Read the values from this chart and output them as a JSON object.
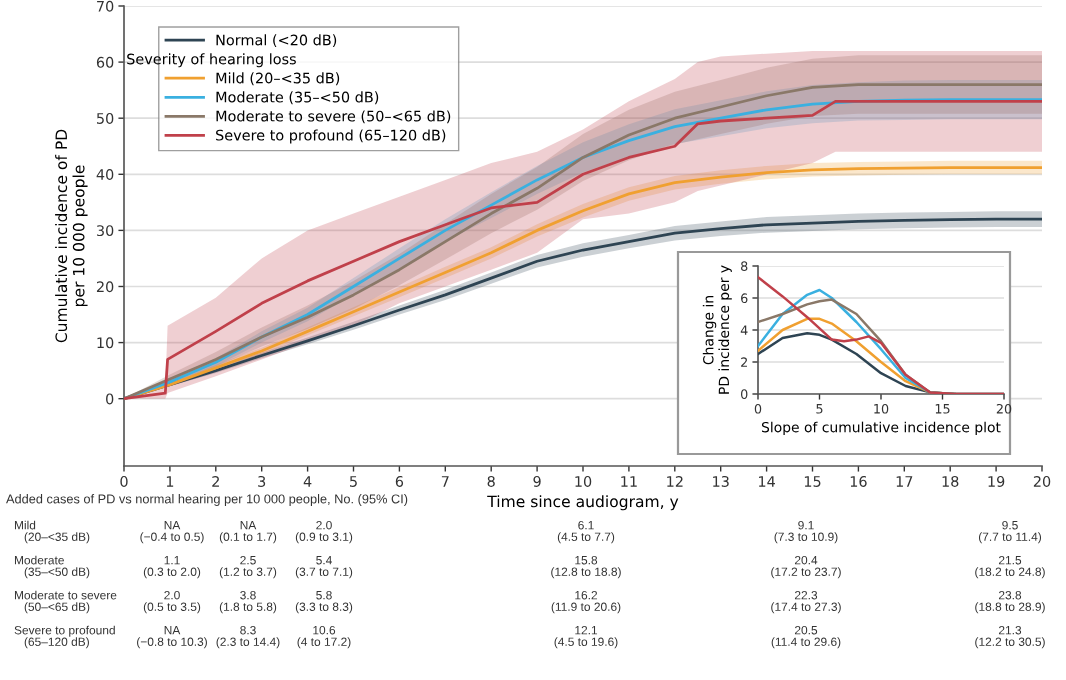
{
  "chart_data": [
    {
      "type": "line",
      "xlabel": "Time since audiogram, y",
      "ylabel": "Cumulative incidence of PD\nper 10 000 people",
      "xlim": [
        0,
        20
      ],
      "xticks": [
        0,
        1,
        2,
        3,
        4,
        5,
        6,
        7,
        8,
        9,
        10,
        11,
        12,
        13,
        14,
        15,
        16,
        17,
        18,
        19,
        20
      ],
      "ylim": [
        -12,
        70
      ],
      "yticks": [
        0,
        10,
        20,
        30,
        40,
        50,
        60,
        70
      ],
      "grid": "y",
      "legend": "top left",
      "legend_title": "Severity of hearing loss",
      "x": [
        0,
        1,
        2,
        3,
        4,
        5,
        6,
        7,
        8,
        9,
        10,
        11,
        12,
        13,
        14,
        15,
        16,
        17,
        18,
        19,
        20
      ],
      "series": [
        {
          "name": "Normal (<20 dB)",
          "color": "#2e4453",
          "values": [
            0,
            2.5,
            5,
            7.7,
            10.3,
            13,
            15.8,
            18.5,
            21.5,
            24.5,
            26.5,
            28,
            29.5,
            30.3,
            31,
            31.3,
            31.6,
            31.8,
            31.9,
            32,
            32
          ],
          "lower": [
            0,
            2.2,
            4.6,
            7.2,
            9.7,
            12.3,
            15,
            17.6,
            20.5,
            23.4,
            25.3,
            26.8,
            28.2,
            29,
            29.6,
            29.9,
            30.2,
            30.4,
            30.5,
            30.6,
            30.6
          ],
          "upper": [
            0,
            2.8,
            5.4,
            8.2,
            10.9,
            13.7,
            16.6,
            19.4,
            22.5,
            25.6,
            27.7,
            29.2,
            30.8,
            31.6,
            32.4,
            32.7,
            33,
            33.2,
            33.3,
            33.4,
            33.4
          ]
        },
        {
          "name": "Mild (20–<35 dB)",
          "color": "#f0a030",
          "values": [
            0,
            2.5,
            5.5,
            8.5,
            12,
            15.5,
            19,
            22.5,
            26,
            30,
            33.5,
            36.5,
            38.5,
            39.5,
            40.3,
            40.8,
            41,
            41.1,
            41.2,
            41.2,
            41.2
          ],
          "lower": [
            0,
            2.2,
            5,
            7.9,
            11.3,
            14.7,
            18.1,
            21.5,
            25,
            28.9,
            32.3,
            35.3,
            37.3,
            38.3,
            39.1,
            39.6,
            39.8,
            39.9,
            40,
            40,
            40
          ],
          "upper": [
            0,
            2.8,
            6,
            9.1,
            12.7,
            16.3,
            19.9,
            23.5,
            27,
            31.1,
            34.7,
            37.7,
            39.7,
            40.7,
            41.5,
            42,
            42.2,
            42.3,
            42.4,
            42.4,
            42.4
          ]
        },
        {
          "name": "Moderate (35–<50 dB)",
          "color": "#3ab0e0",
          "values": [
            0,
            3,
            6.5,
            11,
            15,
            20,
            25,
            30,
            34.5,
            39,
            43,
            46,
            48.5,
            50,
            51.5,
            52.5,
            53,
            53.2,
            53.3,
            53.3,
            53.3
          ],
          "lower": [
            0,
            2.6,
            5.8,
            10,
            13.8,
            18.5,
            23.2,
            28,
            32.2,
            36.5,
            40.3,
            43.1,
            45.4,
            46.8,
            48.2,
            49.1,
            49.6,
            49.7,
            49.8,
            49.8,
            49.8
          ],
          "upper": [
            0,
            3.4,
            7.2,
            12,
            16.2,
            21.5,
            26.8,
            32,
            36.8,
            41.5,
            45.7,
            48.9,
            51.6,
            53.2,
            54.8,
            55.9,
            56.4,
            56.7,
            56.8,
            56.8,
            56.8
          ]
        },
        {
          "name": "Moderate to severe (50–<65 dB)",
          "color": "#8a7868",
          "values": [
            0,
            3.5,
            7,
            11,
            14.5,
            18.5,
            23,
            28,
            33,
            37.5,
            43,
            47,
            50,
            52,
            54,
            55.5,
            56,
            56,
            56,
            56,
            56
          ],
          "lower": [
            0,
            2.7,
            5.7,
            9.3,
            12.4,
            16,
            20.2,
            24.8,
            29.5,
            33.7,
            38.8,
            42.5,
            45.3,
            47.2,
            49,
            50.4,
            50.8,
            50.8,
            50.8,
            50.8,
            50.8
          ],
          "upper": [
            0,
            4.3,
            8.3,
            12.7,
            16.6,
            21,
            25.8,
            31.2,
            36.5,
            41.3,
            47.2,
            51.5,
            54.7,
            56.8,
            59,
            60.6,
            61.2,
            61.2,
            61.2,
            61.2,
            61.2
          ]
        },
        {
          "name": "Severe to profound (65–120 dB)",
          "color": "#c0404a",
          "x": [
            0,
            0.9,
            0.95,
            2,
            3,
            4,
            5,
            6,
            7,
            8,
            9,
            10,
            11,
            12,
            12.5,
            13,
            14,
            15,
            15.5,
            16,
            20
          ],
          "values": [
            0,
            1,
            7,
            12,
            17,
            21,
            24.5,
            28,
            31,
            34,
            35,
            40,
            43,
            45,
            49,
            49.5,
            50,
            50.5,
            53,
            53,
            53
          ],
          "lower": [
            0,
            0,
            1,
            4,
            7,
            10,
            13,
            17,
            20,
            23,
            26,
            32,
            33,
            35,
            37,
            38,
            40,
            42,
            44,
            44,
            44
          ],
          "upper": [
            0,
            2,
            13,
            18,
            25,
            30,
            33,
            36,
            39,
            42,
            44,
            48,
            53,
            57,
            60,
            61,
            61.5,
            62,
            62,
            62,
            62
          ]
        }
      ],
      "annotations": [
        "Added cases of PD vs normal hearing per 10 000 people, No. (95% CI)",
        "Mild\n   (20–<35 dB)",
        "NA\n(−0.4 to 0.5)",
        "NA\n(0.1 to 1.7)",
        "2.0\n(0.9 to 3.1)",
        "6.1\n(4.5 to 7.7)",
        "9.1\n(7.3 to 10.9)",
        "9.5\n(7.7 to 11.4)",
        "Moderate\n   (35–<50 dB)",
        "1.1\n(0.3 to 2.0)",
        "2.5\n(1.2 to 3.7)",
        "5.4\n(3.7 to 7.1)",
        "15.8\n(12.8 to 18.8)",
        "20.4\n(17.2 to 23.7)",
        "21.5\n(18.2 to 24.8)",
        "Moderate to severe\n   (50–<65 dB)",
        "2.0\n(0.5 to 3.5)",
        "3.8\n(1.8 to 5.8)",
        "5.8\n(3.3 to 8.3)",
        "16.2\n(11.9 to 20.6)",
        "22.3\n(17.4 to 27.3)",
        "23.8\n(18.8 to 28.9)",
        "Severe to profound\n   (65–120 dB)",
        "NA\n(−0.8 to 10.3)",
        "8.3\n(2.3 to 14.4)",
        "10.6\n(4 to 17.2)",
        "12.1\n(4.5 to 19.6)",
        "20.5\n(11.4 to 29.6)",
        "21.3\n(12.2 to 30.5)"
      ]
    },
    {
      "type": "line",
      "xlabel": "Slope of cumulative incidence plot",
      "ylabel": "Change in\nPD incidence per y",
      "xlim": [
        0,
        20
      ],
      "xticks": [
        0,
        5,
        10,
        15,
        20
      ],
      "ylim": [
        0,
        8
      ],
      "yticks": [
        0,
        2,
        4,
        6,
        8
      ],
      "grid": "y",
      "x": [
        0,
        2,
        4,
        5,
        6,
        8,
        10,
        12,
        14,
        16,
        18,
        20
      ],
      "series": [
        {
          "color": "#2e4453",
          "values": [
            2.5,
            3.5,
            3.8,
            3.7,
            3.4,
            2.5,
            1.3,
            0.5,
            0.1,
            0,
            0,
            0
          ]
        },
        {
          "color": "#f0a030",
          "values": [
            2.7,
            4,
            4.7,
            4.7,
            4.4,
            3.3,
            2,
            0.8,
            0.1,
            0,
            null,
            null
          ]
        },
        {
          "color": "#3ab0e0",
          "values": [
            3,
            5,
            6.2,
            6.5,
            6,
            4.5,
            2.8,
            1,
            0.1,
            0,
            null,
            null
          ]
        },
        {
          "color": "#8a7868",
          "values": [
            4.5,
            5,
            5.6,
            5.8,
            5.9,
            5,
            3.3,
            1.2,
            0.1,
            0,
            0,
            0
          ]
        },
        {
          "color": "#c0404a",
          "x": [
            0,
            2,
            4,
            5,
            6,
            7,
            8,
            9,
            10,
            12,
            14,
            16,
            18,
            20
          ],
          "values": [
            7.3,
            6.1,
            4.8,
            4.1,
            3.4,
            3.3,
            3.4,
            3.6,
            3.2,
            1.2,
            0.1,
            0,
            0,
            0
          ]
        }
      ]
    }
  ]
}
